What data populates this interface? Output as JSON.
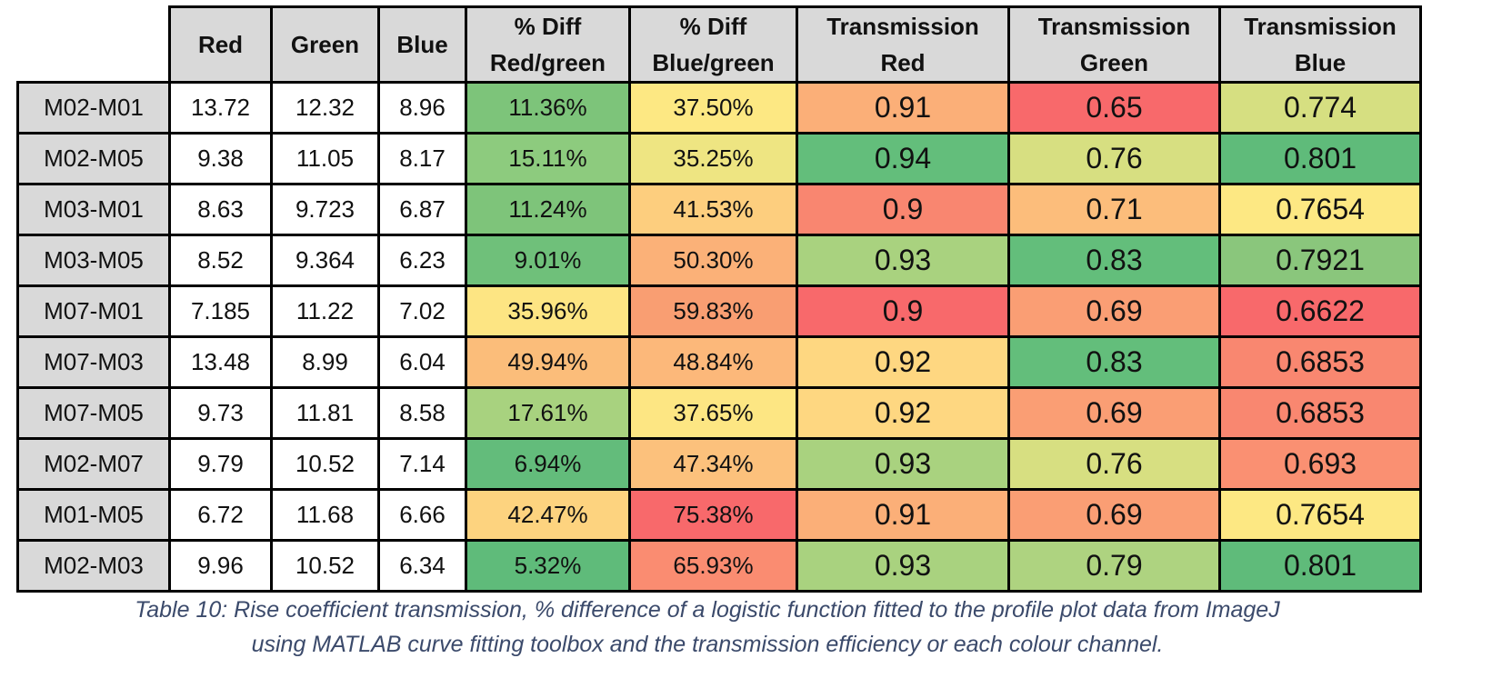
{
  "table": {
    "headers": [
      "",
      "Red",
      "Green",
      "Blue",
      "% Diff\nRed/green",
      "% Diff\nBlue/green",
      "Transmission\nRed",
      "Transmission\nGreen",
      "Transmission\nBlue"
    ],
    "rows": [
      {
        "label": "M02-M01",
        "red": "13.72",
        "green": "12.32",
        "blue": "8.96",
        "diff_rg": "11.36%",
        "diff_bg": "37.50%",
        "t_red": "0.91",
        "t_green": "0.65",
        "t_blue": "0.774"
      },
      {
        "label": "M02-M05",
        "red": "9.38",
        "green": "11.05",
        "blue": "8.17",
        "diff_rg": "15.11%",
        "diff_bg": "35.25%",
        "t_red": "0.94",
        "t_green": "0.76",
        "t_blue": "0.801"
      },
      {
        "label": "M03-M01",
        "red": "8.63",
        "green": "9.723",
        "blue": "6.87",
        "diff_rg": "11.24%",
        "diff_bg": "41.53%",
        "t_red": "0.9",
        "t_green": "0.71",
        "t_blue": "0.7654"
      },
      {
        "label": "M03-M05",
        "red": "8.52",
        "green": "9.364",
        "blue": "6.23",
        "diff_rg": "9.01%",
        "diff_bg": "50.30%",
        "t_red": "0.93",
        "t_green": "0.83",
        "t_blue": "0.7921"
      },
      {
        "label": "M07-M01",
        "red": "7.185",
        "green": "11.22",
        "blue": "7.02",
        "diff_rg": "35.96%",
        "diff_bg": "59.83%",
        "t_red": "0.9",
        "t_green": "0.69",
        "t_blue": "0.6622"
      },
      {
        "label": "M07-M03",
        "red": "13.48",
        "green": "8.99",
        "blue": "6.04",
        "diff_rg": "49.94%",
        "diff_bg": "48.84%",
        "t_red": "0.92",
        "t_green": "0.83",
        "t_blue": "0.6853"
      },
      {
        "label": "M07-M05",
        "red": "9.73",
        "green": "11.81",
        "blue": "8.58",
        "diff_rg": "17.61%",
        "diff_bg": "37.65%",
        "t_red": "0.92",
        "t_green": "0.69",
        "t_blue": "0.6853"
      },
      {
        "label": "M02-M07",
        "red": "9.79",
        "green": "10.52",
        "blue": "7.14",
        "diff_rg": "6.94%",
        "diff_bg": "47.34%",
        "t_red": "0.93",
        "t_green": "0.76",
        "t_blue": "0.693"
      },
      {
        "label": "M01-M05",
        "red": "6.72",
        "green": "11.68",
        "blue": "6.66",
        "diff_rg": "42.47%",
        "diff_bg": "75.38%",
        "t_red": "0.91",
        "t_green": "0.69",
        "t_blue": "0.7654"
      },
      {
        "label": "M02-M03",
        "red": "9.96",
        "green": "10.52",
        "blue": "6.34",
        "diff_rg": "5.32%",
        "diff_bg": "65.93%",
        "t_red": "0.93",
        "t_green": "0.79",
        "t_blue": "0.801"
      }
    ],
    "colors": {
      "diff_rg": [
        "#7dc47a",
        "#8dcb7e",
        "#7ec47a",
        "#6fc07a",
        "#fde583",
        "#fbbd7a",
        "#a8d27f",
        "#63bc7b",
        "#fdd37f",
        "#5fbb7a"
      ],
      "diff_bg": [
        "#fde883",
        "#eee582",
        "#fdce7e",
        "#fbb178",
        "#f99e72",
        "#fcb87a",
        "#fde683",
        "#fcc17c",
        "#f8696b",
        "#fa8c71"
      ],
      "t_red": [
        "#fbaf78",
        "#63be7b",
        "#f98670",
        "#a9d27f",
        "#f8696b",
        "#fed781",
        "#fed781",
        "#a9d27f",
        "#fbaf78",
        "#a9d27f"
      ],
      "t_green": [
        "#f8696b",
        "#d7df81",
        "#fcbd7b",
        "#63be7b",
        "#fa9e74",
        "#63be7b",
        "#fa9e74",
        "#d7df81",
        "#fa9e74",
        "#aed380"
      ],
      "t_blue": [
        "#d6df81",
        "#5fbb7a",
        "#fde883",
        "#8ac67c",
        "#f8696b",
        "#f98770",
        "#f98770",
        "#fa9072",
        "#fde883",
        "#5fbb7a"
      ]
    }
  },
  "caption": {
    "line1": "Table 10: Rise coefficient transmission, % difference of a logistic function fitted to the profile plot data from ImageJ",
    "line2": "using MATLAB curve fitting toolbox and the transmission efficiency or each colour channel."
  }
}
